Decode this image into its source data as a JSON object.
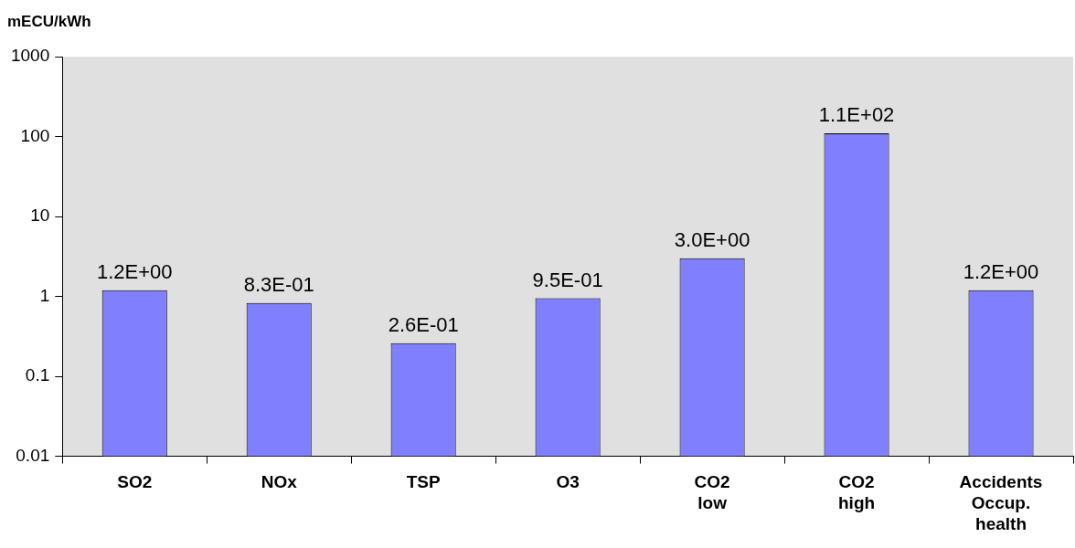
{
  "chart_data": {
    "type": "bar",
    "ylabel": "mECU/kWh",
    "categories": [
      "SO2",
      "NOx",
      "TSP",
      "O3",
      "CO2 low",
      "CO2 high",
      "Accidents Occup. health"
    ],
    "values": [
      1.2,
      0.83,
      0.26,
      0.95,
      3.0,
      110,
      1.2
    ],
    "value_labels": [
      "1.2E+00",
      "8.3E-01",
      "2.6E-01",
      "9.5E-01",
      "3.0E+00",
      "1.1E+02",
      "1.2E+00"
    ],
    "color": "#8080ff",
    "log": "y",
    "ylim": [
      0.01,
      1000
    ],
    "yticks": [
      0.01,
      0.1,
      1,
      10,
      100,
      1000
    ],
    "grid": false,
    "legend": false
  }
}
